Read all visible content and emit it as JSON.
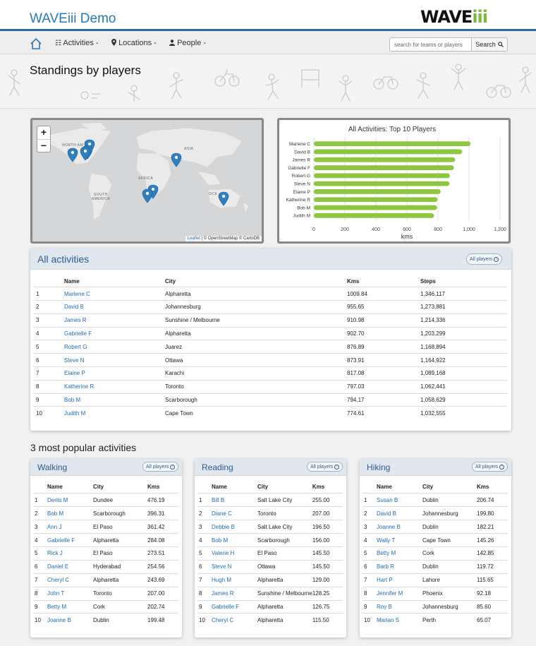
{
  "app": {
    "title": "WAVEiii Demo",
    "logo_main": "WAVE",
    "logo_accent": "iii"
  },
  "nav": {
    "home_icon": "home-icon",
    "activities": "Activities -",
    "locations": "Locations -",
    "people": "People -",
    "search_placeholder": "search for teams or players",
    "search_label": "Search"
  },
  "page": {
    "title": "Standings by players"
  },
  "map": {
    "zoom_in": "+",
    "zoom_out": "−",
    "attribution_leaflet": "Leaflet",
    "attribution_rest": " | © OpenStreetMap © CartoDB",
    "labels": {
      "north_america": "NORTH AM",
      "asia": "ASIA",
      "africa": "AFRICA",
      "south_america": "SOUTH AMERICA",
      "oceania": "OCE"
    },
    "marker_color": "#2d7fc1"
  },
  "chart_data": {
    "type": "bar",
    "orientation": "horizontal",
    "title": "All Activities: Top 10 Players",
    "categories": [
      "Marlene C",
      "David B",
      "James R",
      "Gabrielle F",
      "Robert G",
      "Steve N",
      "Elaine P",
      "Katherine R",
      "Bob M",
      "Judith M"
    ],
    "values": [
      1009.84,
      955.65,
      910.98,
      902.7,
      876.89,
      873.91,
      817.08,
      797.03,
      794.17,
      774.61
    ],
    "xlabel": "kms",
    "xlim": [
      0,
      1200
    ],
    "xticks": [
      "0",
      "200",
      "400",
      "600",
      "800",
      "1,000",
      "1,200"
    ],
    "bar_color": "#8dc63f",
    "grid": true
  },
  "all_activities": {
    "title": "All activities",
    "button": "All players",
    "headers": {
      "rank": "",
      "name": "Name",
      "city": "City",
      "kms": "Kms",
      "steps": "Steps"
    },
    "rows": [
      {
        "rank": "1",
        "name": "Marlene C",
        "city": "Alpharetta",
        "kms": "1009.84",
        "steps": "1,346,117"
      },
      {
        "rank": "2",
        "name": "David B",
        "city": "Johannesburg",
        "kms": "955.65",
        "steps": "1,273,881"
      },
      {
        "rank": "3",
        "name": "James R",
        "city": "Sunshine / Melbourne",
        "kms": "910.98",
        "steps": "1,214,336"
      },
      {
        "rank": "4",
        "name": "Gabrielle F",
        "city": "Alpharetta",
        "kms": "902.70",
        "steps": "1,203,299"
      },
      {
        "rank": "5",
        "name": "Robert G",
        "city": "Juarez",
        "kms": "876.89",
        "steps": "1,168,894"
      },
      {
        "rank": "6",
        "name": "Steve N",
        "city": "Ottawa",
        "kms": "873.91",
        "steps": "1,164,922"
      },
      {
        "rank": "7",
        "name": "Elaine P",
        "city": "Karachi",
        "kms": "817.08",
        "steps": "1,089,168"
      },
      {
        "rank": "8",
        "name": "Katherine R",
        "city": "Toronto",
        "kms": "797.03",
        "steps": "1,062,441"
      },
      {
        "rank": "9",
        "name": "Bob M",
        "city": "Scarborough",
        "kms": "794.17",
        "steps": "1,058,629"
      },
      {
        "rank": "10",
        "name": "Judith M",
        "city": "Cape Town",
        "kms": "774.61",
        "steps": "1,032,555"
      }
    ]
  },
  "popular": {
    "title": "3 most popular activities",
    "activities": [
      {
        "title": "Walking",
        "button": "All players",
        "headers": {
          "rank": "",
          "name": "Name",
          "city": "City",
          "kms": "Kms"
        },
        "rows": [
          {
            "rank": "1",
            "name": "Denis M",
            "city": "Dundee",
            "kms": "476.19"
          },
          {
            "rank": "2",
            "name": "Bob M",
            "city": "Scarborough",
            "kms": "396.31"
          },
          {
            "rank": "3",
            "name": "Ann J",
            "city": "El Paso",
            "kms": "361.42"
          },
          {
            "rank": "4",
            "name": "Gabrielle F",
            "city": "Alpharetta",
            "kms": "284.08"
          },
          {
            "rank": "5",
            "name": "Rick J",
            "city": "El Paso",
            "kms": "273.51"
          },
          {
            "rank": "6",
            "name": "Daniel E",
            "city": "Hyderabad",
            "kms": "254.56"
          },
          {
            "rank": "7",
            "name": "Cheryl C",
            "city": "Alpharetta",
            "kms": "243.69"
          },
          {
            "rank": "8",
            "name": "John T",
            "city": "Toronto",
            "kms": "207.00"
          },
          {
            "rank": "9",
            "name": "Betty M",
            "city": "Cork",
            "kms": "202.74"
          },
          {
            "rank": "10",
            "name": "Joanne B",
            "city": "Dublin",
            "kms": "199.48"
          }
        ]
      },
      {
        "title": "Reading",
        "button": "All players",
        "headers": {
          "rank": "",
          "name": "Name",
          "city": "City",
          "kms": "Kms"
        },
        "rows": [
          {
            "rank": "1",
            "name": "Bill B",
            "city": "Salt Lake City",
            "kms": "255.00"
          },
          {
            "rank": "2",
            "name": "Diane C",
            "city": "Toronto",
            "kms": "207.00"
          },
          {
            "rank": "3",
            "name": "Debbie B",
            "city": "Salt Lake City",
            "kms": "196.50"
          },
          {
            "rank": "4",
            "name": "Bob M",
            "city": "Scarborough",
            "kms": "156.00"
          },
          {
            "rank": "5",
            "name": "Valerie H",
            "city": "El Paso",
            "kms": "145.50"
          },
          {
            "rank": "6",
            "name": "Steve N",
            "city": "Ottawa",
            "kms": "145.50"
          },
          {
            "rank": "7",
            "name": "Hugh M",
            "city": "Alpharetta",
            "kms": "129.00"
          },
          {
            "rank": "8",
            "name": "James R",
            "city": "Sunshine / Melbourne",
            "kms": "128.25"
          },
          {
            "rank": "9",
            "name": "Gabrielle F",
            "city": "Alpharetta",
            "kms": "126.75"
          },
          {
            "rank": "10",
            "name": "Cheryl C",
            "city": "Alpharetta",
            "kms": "115.50"
          }
        ]
      },
      {
        "title": "Hiking",
        "button": "All players",
        "headers": {
          "rank": "",
          "name": "Name",
          "city": "City",
          "kms": "Kms"
        },
        "rows": [
          {
            "rank": "1",
            "name": "Susan B",
            "city": "Dublin",
            "kms": "206.74"
          },
          {
            "rank": "2",
            "name": "David B",
            "city": "Johannesburg",
            "kms": "199.80"
          },
          {
            "rank": "3",
            "name": "Joanne B",
            "city": "Dublin",
            "kms": "182.21"
          },
          {
            "rank": "4",
            "name": "Wally T",
            "city": "Cape Town",
            "kms": "145.26"
          },
          {
            "rank": "5",
            "name": "Betty M",
            "city": "Cork",
            "kms": "142.85"
          },
          {
            "rank": "6",
            "name": "Barb R",
            "city": "Dublin",
            "kms": "119.72"
          },
          {
            "rank": "7",
            "name": "Hart P",
            "city": "Lahore",
            "kms": "115.65"
          },
          {
            "rank": "8",
            "name": "Jennifer M",
            "city": "Phoenix",
            "kms": "92.18"
          },
          {
            "rank": "9",
            "name": "Roy B",
            "city": "Johannesburg",
            "kms": "85.60"
          },
          {
            "rank": "10",
            "name": "Marian S",
            "city": "Perth",
            "kms": "65.07"
          }
        ]
      }
    ]
  }
}
